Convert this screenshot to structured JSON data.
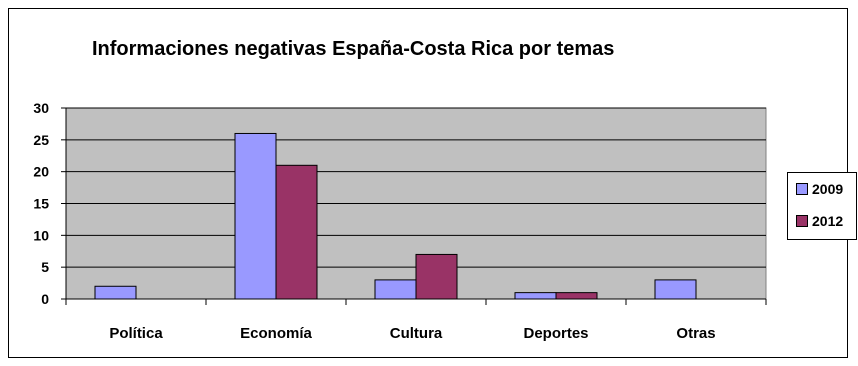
{
  "chart_data": {
    "type": "bar",
    "title": "Informaciones negativas España-Costa Rica por temas",
    "categories": [
      "Política",
      "Economía",
      "Cultura",
      "Deportes",
      "Otras"
    ],
    "series": [
      {
        "name": "2009",
        "values": [
          2,
          26,
          3,
          1,
          3
        ],
        "color": "#9999ff"
      },
      {
        "name": "2012",
        "values": [
          0,
          21,
          7,
          1,
          0
        ],
        "color": "#993366"
      }
    ],
    "ylim": [
      0,
      30
    ],
    "yticks": [
      "0",
      "5",
      "10",
      "15",
      "20",
      "25",
      "30"
    ],
    "grid": true,
    "plot_background": "#c0c0c0",
    "legend_position": "right"
  }
}
